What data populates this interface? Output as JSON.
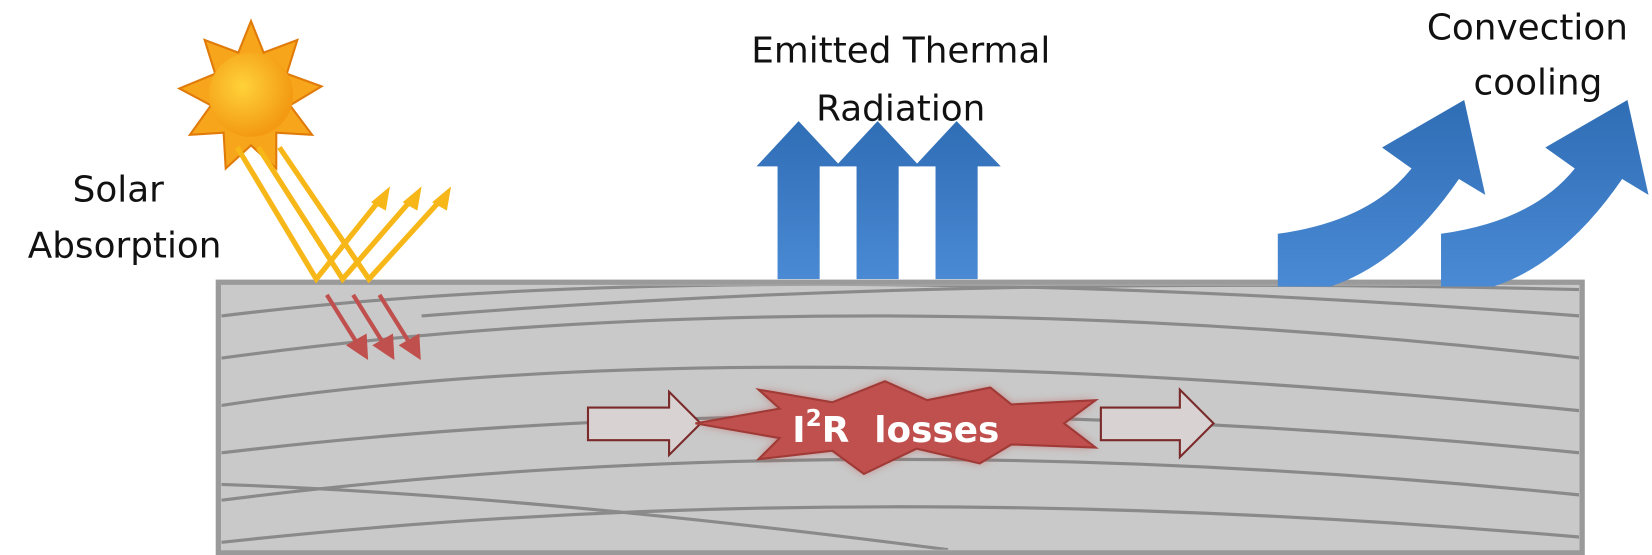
{
  "labels": {
    "solar": [
      "Solar",
      "Absorption"
    ],
    "emitted": [
      "Emitted Thermal",
      "Radiation"
    ],
    "convection": [
      "Convection",
      "cooling"
    ],
    "losses": {
      "base": "I",
      "superscript": "2",
      "rest": "R  losses"
    }
  }
}
